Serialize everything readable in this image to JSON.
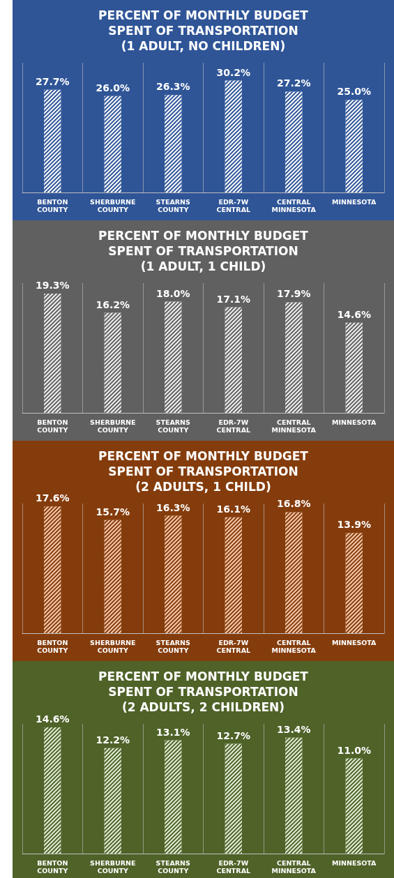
{
  "chart_data": [
    {
      "type": "bar",
      "title": "PERCENT OF MONTHLY BUDGET\nSPENT OF TRANSPORTATION\n(1 ADULT, NO CHILDREN)",
      "categories": [
        "BENTON\nCOUNTY",
        "SHERBURNE\nCOUNTY",
        "STEARNS\nCOUNTY",
        "EDR-7W\nCENTRAL",
        "CENTRAL\nMINNESOTA",
        "MINNESOTA"
      ],
      "values": [
        27.7,
        26.0,
        26.3,
        30.2,
        27.2,
        25.0
      ],
      "value_labels": [
        "27.7%",
        "26.0%",
        "26.3%",
        "30.2%",
        "27.2%",
        "25.0%"
      ],
      "color": "#ffffff",
      "grid": "x"
    },
    {
      "type": "bar",
      "title": "PERCENT OF MONTHLY BUDGET\nSPENT OF TRANSPORTATION\n(1 ADULT, 1 CHILD)",
      "categories": [
        "BENTON\nCOUNTY",
        "SHERBURNE\nCOUNTY",
        "STEARNS\nCOUNTY",
        "EDR-7W\nCENTRAL",
        "CENTRAL\nMINNESOTA",
        "MINNESOTA"
      ],
      "values": [
        19.3,
        16.2,
        18.0,
        17.1,
        17.9,
        14.6
      ],
      "value_labels": [
        "19.3%",
        "16.2%",
        "18.0%",
        "17.1%",
        "17.9%",
        "14.6%"
      ],
      "color": "#f2f2f2",
      "grid": "x"
    },
    {
      "type": "bar",
      "title": "PERCENT OF MONTHLY BUDGET\nSPENT OF TRANSPORTATION\n(2 ADULTS, 1 CHILD)",
      "categories": [
        "BENTON\nCOUNTY",
        "SHERBURNE\nCOUNTY",
        "STEARNS\nCOUNTY",
        "EDR-7W\nCENTRAL",
        "CENTRAL\nMINNESOTA",
        "MINNESOTA"
      ],
      "values": [
        17.6,
        15.7,
        16.3,
        16.1,
        16.8,
        13.9
      ],
      "value_labels": [
        "17.6%",
        "15.7%",
        "16.3%",
        "16.1%",
        "16.8%",
        "13.9%"
      ],
      "color": "#f8cbad",
      "grid": "x"
    },
    {
      "type": "bar",
      "title": "PERCENT OF MONTHLY BUDGET\nSPENT OF TRANSPORTATION\n(2 ADULTS, 2 CHILDREN)",
      "categories": [
        "BENTON\nCOUNTY",
        "SHERBURNE\nCOUNTY",
        "STEARNS\nCOUNTY",
        "EDR-7W\nCENTRAL",
        "CENTRAL\nMINNESOTA",
        "MINNESOTA"
      ],
      "values": [
        14.6,
        12.2,
        13.1,
        12.7,
        13.4,
        11.0
      ],
      "value_labels": [
        "14.6%",
        "12.2%",
        "13.1%",
        "12.7%",
        "13.4%",
        "11.0%"
      ],
      "color": "#e2f0d9",
      "grid": "x"
    }
  ]
}
